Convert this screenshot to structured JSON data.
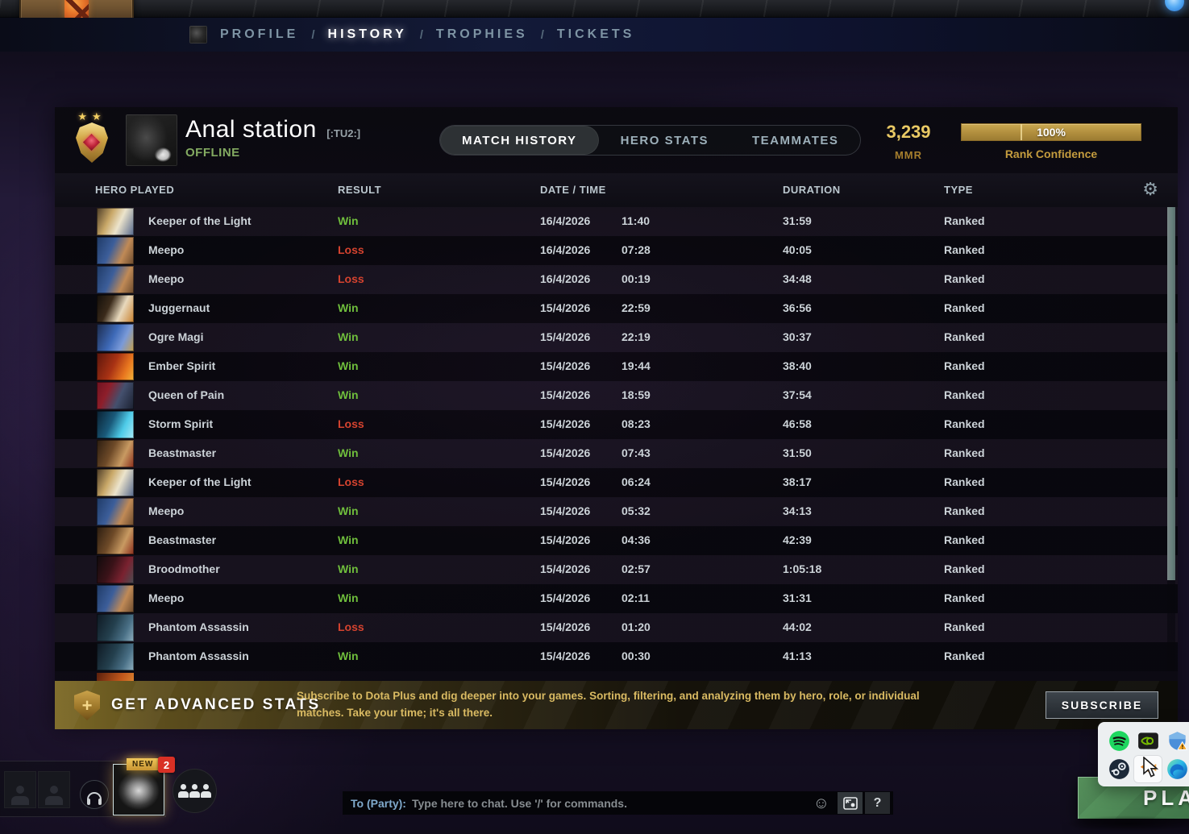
{
  "nav": {
    "separator": "/",
    "items": [
      {
        "label": "PROFILE",
        "slug": "profile",
        "active": false
      },
      {
        "label": "HISTORY",
        "slug": "history",
        "active": true
      },
      {
        "label": "TROPHIES",
        "slug": "trophies",
        "active": false
      },
      {
        "label": "TICKETS",
        "slug": "tickets",
        "active": false
      }
    ]
  },
  "header": {
    "player_name": "Anal station",
    "player_tag": "[:TU2:]",
    "status": "OFFLINE",
    "tabs": [
      {
        "label": "MATCH HISTORY",
        "slug": "match-history",
        "active": true
      },
      {
        "label": "HERO STATS",
        "slug": "hero-stats",
        "active": false
      },
      {
        "label": "TEAMMATES",
        "slug": "teammates",
        "active": false
      }
    ],
    "mmr_value": "3,239",
    "mmr_label": "MMR",
    "rank_confidence_value": "100%",
    "rank_confidence_label": "Rank Confidence"
  },
  "table": {
    "columns": [
      "HERO PLAYED",
      "RESULT",
      "DATE / TIME",
      "DURATION",
      "TYPE"
    ],
    "rows": [
      {
        "hero": "Keeper of the Light",
        "slug": "kotl",
        "result": "Win",
        "date": "16/4/2026",
        "time": "11:40",
        "duration": "31:59",
        "type": "Ranked"
      },
      {
        "hero": "Meepo",
        "slug": "meepo",
        "result": "Loss",
        "date": "16/4/2026",
        "time": "07:28",
        "duration": "40:05",
        "type": "Ranked"
      },
      {
        "hero": "Meepo",
        "slug": "meepo",
        "result": "Loss",
        "date": "16/4/2026",
        "time": "00:19",
        "duration": "34:48",
        "type": "Ranked"
      },
      {
        "hero": "Juggernaut",
        "slug": "jugg",
        "result": "Win",
        "date": "15/4/2026",
        "time": "22:59",
        "duration": "36:56",
        "type": "Ranked"
      },
      {
        "hero": "Ogre Magi",
        "slug": "ogre",
        "result": "Win",
        "date": "15/4/2026",
        "time": "22:19",
        "duration": "30:37",
        "type": "Ranked"
      },
      {
        "hero": "Ember Spirit",
        "slug": "ember",
        "result": "Win",
        "date": "15/4/2026",
        "time": "19:44",
        "duration": "38:40",
        "type": "Ranked"
      },
      {
        "hero": "Queen of Pain",
        "slug": "qop",
        "result": "Win",
        "date": "15/4/2026",
        "time": "18:59",
        "duration": "37:54",
        "type": "Ranked"
      },
      {
        "hero": "Storm Spirit",
        "slug": "storm",
        "result": "Loss",
        "date": "15/4/2026",
        "time": "08:23",
        "duration": "46:58",
        "type": "Ranked"
      },
      {
        "hero": "Beastmaster",
        "slug": "beast",
        "result": "Win",
        "date": "15/4/2026",
        "time": "07:43",
        "duration": "31:50",
        "type": "Ranked"
      },
      {
        "hero": "Keeper of the Light",
        "slug": "kotl",
        "result": "Loss",
        "date": "15/4/2026",
        "time": "06:24",
        "duration": "38:17",
        "type": "Ranked"
      },
      {
        "hero": "Meepo",
        "slug": "meepo",
        "result": "Win",
        "date": "15/4/2026",
        "time": "05:32",
        "duration": "34:13",
        "type": "Ranked"
      },
      {
        "hero": "Beastmaster",
        "slug": "beast",
        "result": "Win",
        "date": "15/4/2026",
        "time": "04:36",
        "duration": "42:39",
        "type": "Ranked"
      },
      {
        "hero": "Broodmother",
        "slug": "brood",
        "result": "Win",
        "date": "15/4/2026",
        "time": "02:57",
        "duration": "1:05:18",
        "type": "Ranked"
      },
      {
        "hero": "Meepo",
        "slug": "meepo",
        "result": "Win",
        "date": "15/4/2026",
        "time": "02:11",
        "duration": "31:31",
        "type": "Ranked"
      },
      {
        "hero": "Phantom Assassin",
        "slug": "pa",
        "result": "Loss",
        "date": "15/4/2026",
        "time": "01:20",
        "duration": "44:02",
        "type": "Ranked"
      },
      {
        "hero": "Phantom Assassin",
        "slug": "pa",
        "result": "Win",
        "date": "15/4/2026",
        "time": "00:30",
        "duration": "41:13",
        "type": "Ranked"
      }
    ]
  },
  "banner": {
    "title": "GET ADVANCED STATS",
    "description": "Subscribe to Dota Plus and dig deeper into your games. Sorting, filtering, and analyzing them by hero, role, or individual matches. Take your time; it's all there.",
    "subscribe_label": "SUBSCRIBE"
  },
  "bottom": {
    "chat_prefix": "To (Party):",
    "chat_placeholder": "Type here to chat. Use '/' for commands.",
    "help_label": "?",
    "new_badge": "NEW",
    "notification_count": "2",
    "play_label": "PLAY"
  },
  "icons": {
    "gear": "⚙",
    "smiley": "☺",
    "star": "★",
    "tray": [
      "spotify",
      "nvidia",
      "security-alert",
      "steam",
      "highlighted-app",
      "edge"
    ]
  },
  "colors": {
    "win": "#6fbe3c",
    "loss": "#d5432f",
    "gold_accent": "#e9c964",
    "confidence_bar": "#b3903f",
    "offline_green": "#83aa61",
    "play_green": "#477f50"
  }
}
